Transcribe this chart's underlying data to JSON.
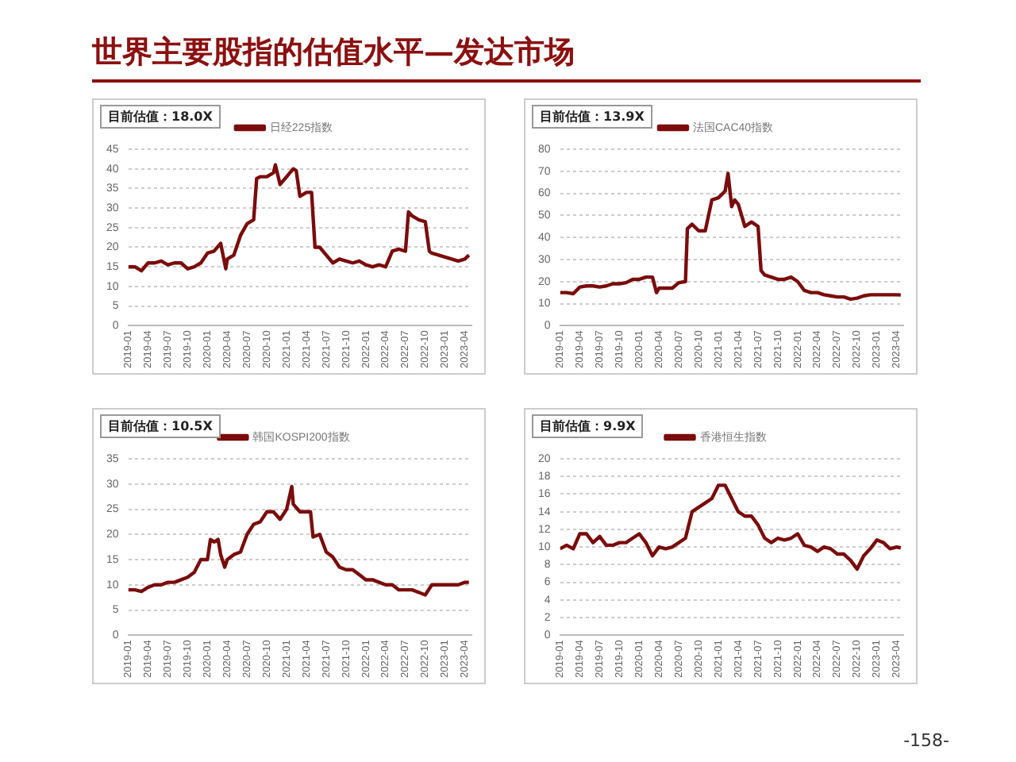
{
  "chart_data": [
    {
      "type": "line",
      "title": "世界主要股指的估值水平—发达市场",
      "subtitle": "目前估值：18.0X",
      "legend": "top",
      "grid": "y",
      "x": [
        "2019-01",
        "2019-02",
        "2019-03",
        "2019-04",
        "2019-05",
        "2019-06",
        "2019-07",
        "2019-08",
        "2019-09",
        "2019-10",
        "2019-11",
        "2019-12",
        "2020-01",
        "2020-02",
        "2020-03",
        "2020-03-25",
        "2020-04",
        "2020-05",
        "2020-06",
        "2020-07",
        "2020-08",
        "2020-08-15",
        "2020-09",
        "2020-10",
        "2020-11",
        "2020-11-10",
        "2020-12",
        "2021-01",
        "2021-02",
        "2021-02-15",
        "2021-03",
        "2021-04",
        "2021-04-25",
        "2021-05-10",
        "2021-06",
        "2021-07",
        "2021-08",
        "2021-09",
        "2021-10",
        "2021-11",
        "2021-12",
        "2022-01",
        "2022-02",
        "2022-03",
        "2022-04",
        "2022-05",
        "2022-06",
        "2022-07",
        "2022-07-15",
        "2022-08",
        "2022-09",
        "2022-10",
        "2022-10-20",
        "2022-11",
        "2022-12",
        "2023-01",
        "2023-02",
        "2023-03",
        "2023-04",
        "2023-04-20"
      ],
      "series": [
        {
          "name": "日经225指数",
          "color": "#7a0c0c",
          "values": [
            15,
            15,
            14,
            16,
            16,
            16.5,
            15.5,
            16,
            16,
            14.5,
            15,
            16,
            18.5,
            19,
            21,
            14.5,
            17,
            18,
            23,
            26,
            27,
            37.5,
            38,
            38,
            39,
            41,
            36,
            38,
            40,
            39.5,
            33,
            34,
            34,
            20,
            20,
            18,
            16,
            17,
            16.5,
            16,
            16.5,
            15.5,
            15,
            15.5,
            15,
            19,
            19.5,
            19,
            29,
            28,
            27,
            26.5,
            19,
            18.5,
            18,
            17.5,
            17,
            16.5,
            17,
            18
          ]
        }
      ],
      "xlim": [
        "2019-01",
        "2023-05"
      ],
      "xticks": [
        "2019-01",
        "2019-04",
        "2019-07",
        "2019-10",
        "2020-01",
        "2020-04",
        "2020-07",
        "2020-10",
        "2021-01",
        "2021-04",
        "2021-07",
        "2021-10",
        "2022-01",
        "2022-04",
        "2022-07",
        "2022-10",
        "2023-01",
        "2023-04"
      ],
      "ylim": [
        0,
        45
      ],
      "yticks": [
        0,
        5,
        10,
        15,
        20,
        25,
        30,
        35,
        40,
        45
      ]
    },
    {
      "type": "line",
      "subtitle": "目前估值：13.9X",
      "legend": "top",
      "grid": "y",
      "x": [
        "2019-01",
        "2019-02",
        "2019-03",
        "2019-04",
        "2019-05",
        "2019-06",
        "2019-07",
        "2019-08",
        "2019-09",
        "2019-10",
        "2019-11",
        "2019-12",
        "2020-01",
        "2020-02",
        "2020-03",
        "2020-03-20",
        "2020-04",
        "2020-05",
        "2020-06",
        "2020-07",
        "2020-08",
        "2020-08-10",
        "2020-09",
        "2020-10",
        "2020-11",
        "2020-12",
        "2021-01",
        "2021-02",
        "2021-02-15",
        "2021-03",
        "2021-03-15",
        "2021-04",
        "2021-05",
        "2021-06",
        "2021-07",
        "2021-07-15",
        "2021-08",
        "2021-09",
        "2021-10",
        "2021-11",
        "2021-12",
        "2022-01",
        "2022-02",
        "2022-03",
        "2022-04",
        "2022-05",
        "2022-06",
        "2022-07",
        "2022-08",
        "2022-09",
        "2022-10",
        "2022-11",
        "2022-12",
        "2023-01",
        "2023-02",
        "2023-03",
        "2023-04",
        "2023-04-20"
      ],
      "series": [
        {
          "name": "法国CAC40指数",
          "color": "#7a0c0c",
          "values": [
            15,
            15,
            14.5,
            17.5,
            18,
            18,
            17.5,
            18,
            19,
            19,
            19.5,
            21,
            21,
            22,
            22,
            15,
            17,
            17,
            17,
            19.5,
            20,
            44,
            46,
            43,
            43,
            57,
            58,
            61,
            69,
            54,
            57,
            55,
            45,
            47,
            45,
            25,
            23,
            22,
            21,
            21,
            22,
            20,
            16,
            15,
            15,
            14,
            13.5,
            13,
            13,
            12,
            12.5,
            13.5,
            14,
            14,
            14,
            14,
            14,
            13.9
          ]
        }
      ],
      "xlim": [
        "2019-01",
        "2023-05"
      ],
      "xticks": [
        "2019-01",
        "2019-04",
        "2019-07",
        "2019-10",
        "2020-01",
        "2020-04",
        "2020-07",
        "2020-10",
        "2021-01",
        "2021-04",
        "2021-07",
        "2021-10",
        "2022-01",
        "2022-04",
        "2022-07",
        "2022-10",
        "2023-01",
        "2023-04"
      ],
      "ylim": [
        0,
        80
      ],
      "yticks": [
        0,
        10,
        20,
        30,
        40,
        50,
        60,
        70,
        80
      ]
    },
    {
      "type": "line",
      "subtitle": "目前估值：10.5X",
      "legend": "top",
      "grid": "y",
      "x": [
        "2019-01",
        "2019-02",
        "2019-03",
        "2019-04",
        "2019-05",
        "2019-06",
        "2019-07",
        "2019-08",
        "2019-09",
        "2019-10",
        "2019-11",
        "2019-12",
        "2020-01",
        "2020-01-15",
        "2020-02",
        "2020-02-20",
        "2020-03",
        "2020-03-20",
        "2020-04",
        "2020-05",
        "2020-06",
        "2020-07",
        "2020-08",
        "2020-09",
        "2020-10",
        "2020-11",
        "2020-12",
        "2021-01",
        "2021-01-25",
        "2021-02",
        "2021-03",
        "2021-04",
        "2021-04-20",
        "2021-05",
        "2021-06",
        "2021-07",
        "2021-08",
        "2021-09",
        "2021-10",
        "2021-11",
        "2021-12",
        "2022-01",
        "2022-02",
        "2022-03",
        "2022-04",
        "2022-05",
        "2022-06",
        "2022-07",
        "2022-08",
        "2022-09",
        "2022-10",
        "2022-11",
        "2022-12",
        "2023-01",
        "2023-02",
        "2023-03",
        "2023-04",
        "2023-04-20"
      ],
      "series": [
        {
          "name": "韩国KOSPI200指数",
          "color": "#7a0c0c",
          "values": [
            9,
            9,
            8.7,
            9.5,
            10,
            10,
            10.5,
            10.5,
            11,
            11.5,
            12.5,
            15,
            15,
            19,
            18.5,
            19,
            16,
            13.5,
            15,
            16,
            16.5,
            20,
            22,
            22.5,
            24.5,
            24.5,
            23,
            25,
            29.5,
            26,
            24.5,
            24.5,
            24.5,
            19.5,
            20,
            16.5,
            15.5,
            13.5,
            13,
            13,
            12,
            11,
            11,
            10.5,
            10,
            10,
            9,
            9,
            9,
            8.5,
            8,
            10,
            10,
            10,
            10,
            10,
            10.5,
            10.5
          ]
        }
      ],
      "xlim": [
        "2019-01",
        "2023-05"
      ],
      "xticks": [
        "2019-01",
        "2019-04",
        "2019-07",
        "2019-10",
        "2020-01",
        "2020-04",
        "2020-07",
        "2020-10",
        "2021-01",
        "2021-04",
        "2021-07",
        "2021-10",
        "2022-01",
        "2022-04",
        "2022-07",
        "2022-10",
        "2023-01",
        "2023-04"
      ],
      "ylim": [
        0,
        35
      ],
      "yticks": [
        0,
        5,
        10,
        15,
        20,
        25,
        30,
        35
      ]
    },
    {
      "type": "line",
      "subtitle": "目前估值：9.9X",
      "legend": "top",
      "grid": "y",
      "annotations": [
        "-158-"
      ],
      "x": [
        "2019-01",
        "2019-02",
        "2019-03",
        "2019-04",
        "2019-05",
        "2019-06",
        "2019-07",
        "2019-08",
        "2019-09",
        "2019-10",
        "2019-11",
        "2019-12",
        "2020-01",
        "2020-02",
        "2020-03",
        "2020-04",
        "2020-05",
        "2020-06",
        "2020-07",
        "2020-08",
        "2020-09",
        "2020-10",
        "2020-11",
        "2020-12",
        "2021-01",
        "2021-02",
        "2021-03",
        "2021-04",
        "2021-05",
        "2021-06",
        "2021-07",
        "2021-08",
        "2021-09",
        "2021-10",
        "2021-11",
        "2021-12",
        "2022-01",
        "2022-02",
        "2022-03",
        "2022-04",
        "2022-05",
        "2022-06",
        "2022-07",
        "2022-08",
        "2022-09",
        "2022-10",
        "2022-11",
        "2022-12",
        "2023-01",
        "2023-02",
        "2023-03",
        "2023-04",
        "2023-04-20"
      ],
      "series": [
        {
          "name": "香港恒生指数",
          "color": "#7a0c0c",
          "values": [
            9.8,
            10.2,
            9.8,
            11.5,
            11.5,
            10.5,
            11.2,
            10.2,
            10.2,
            10.5,
            10.5,
            11,
            11.5,
            10.5,
            9,
            10,
            9.8,
            10,
            10.5,
            11,
            14,
            14.5,
            15,
            15.5,
            17,
            17,
            15.5,
            14,
            13.5,
            13.5,
            12.5,
            11,
            10.5,
            11,
            10.8,
            11,
            11.5,
            10.2,
            10,
            9.5,
            10,
            9.8,
            9.2,
            9.2,
            8.5,
            7.5,
            9,
            9.8,
            10.8,
            10.5,
            9.8,
            10,
            9.9
          ]
        }
      ],
      "xlim": [
        "2019-01",
        "2023-05"
      ],
      "xticks": [
        "2019-01",
        "2019-04",
        "2019-07",
        "2019-10",
        "2020-01",
        "2020-04",
        "2020-07",
        "2020-10",
        "2021-01",
        "2021-04",
        "2021-07",
        "2021-10",
        "2022-01",
        "2022-04",
        "2022-07",
        "2022-10",
        "2023-01",
        "2023-04"
      ],
      "ylim": [
        0,
        20
      ],
      "yticks": [
        0,
        2,
        4,
        6,
        8,
        10,
        12,
        14,
        16,
        18,
        20
      ]
    }
  ]
}
